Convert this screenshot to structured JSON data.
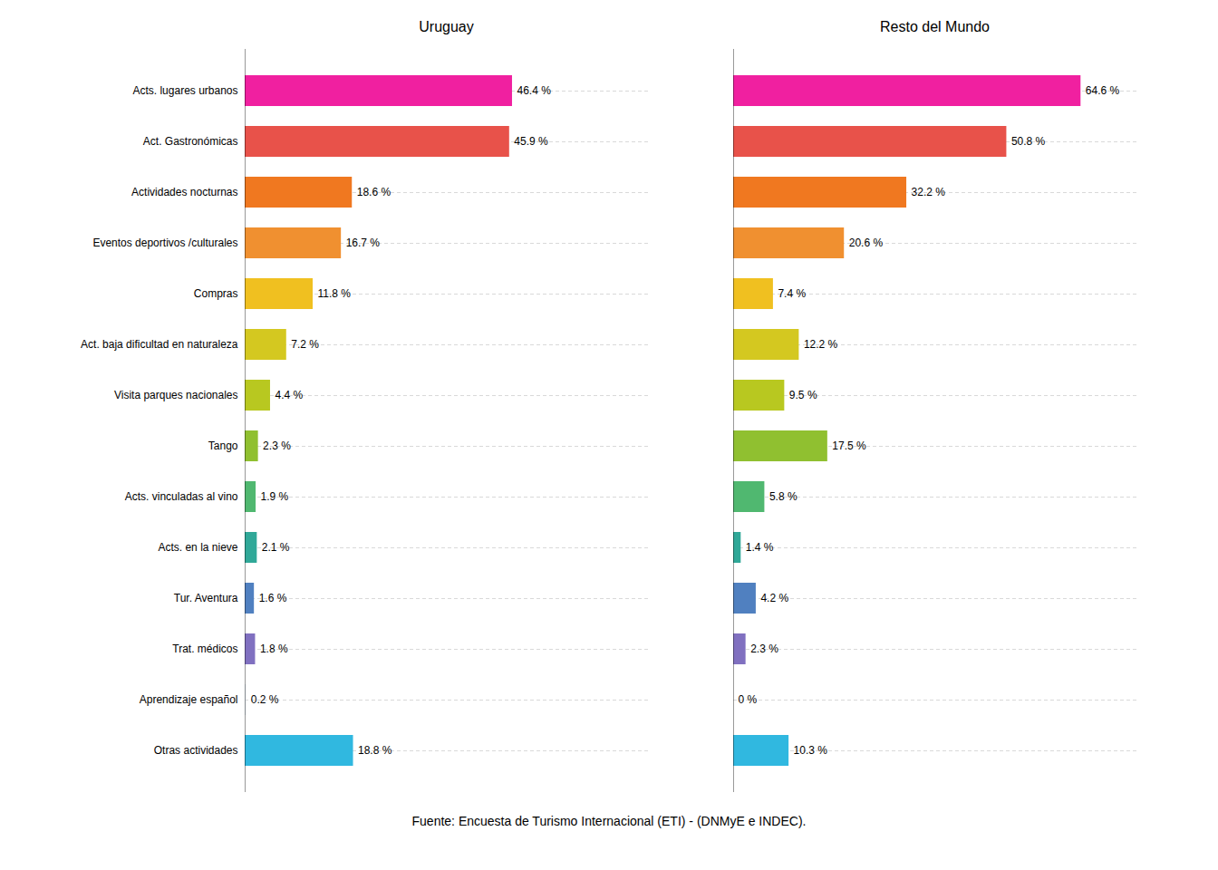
{
  "chart_data": [
    {
      "type": "bar",
      "orientation": "horizontal",
      "title": "Uruguay",
      "categories": [
        "Acts. lugares urbanos",
        "Act. Gastronómicas",
        "Actividades nocturnas",
        "Eventos deportivos /culturales",
        "Compras",
        "Act. baja dificultad en naturaleza",
        "Visita parques nacionales",
        "Tango",
        "Acts. vinculadas al vino",
        "Acts. en la nieve",
        "Tur. Aventura",
        "Trat. médicos",
        "Aprendizaje español",
        "Otras actividades"
      ],
      "values": [
        46.4,
        45.9,
        18.6,
        16.7,
        11.8,
        7.2,
        4.4,
        2.3,
        1.9,
        2.1,
        1.6,
        1.8,
        0.2,
        18.8
      ],
      "value_labels": [
        "46.4 %",
        "45.9 %",
        "18.6 %",
        "16.7 %",
        "11.8 %",
        "7.2 %",
        "4.4 %",
        "2.3 %",
        "1.9 %",
        "2.1 %",
        "1.6 %",
        "1.8 %",
        "0.2 %",
        "18.8 %"
      ],
      "colors": [
        "#F020A0",
        "#E8524A",
        "#F07820",
        "#F09030",
        "#F0C020",
        "#D4C820",
        "#B8C820",
        "#90C030",
        "#50B870",
        "#30A898",
        "#5080C0",
        "#8070C0",
        "#E0E8F0",
        "#30B8E0"
      ],
      "xlim": [
        0,
        70
      ],
      "data_labels": true,
      "tick_labels": "y",
      "grid": true
    },
    {
      "type": "bar",
      "orientation": "horizontal",
      "title": "Resto del Mundo",
      "categories": [
        "Acts. lugares urbanos",
        "Act. Gastronómicas",
        "Actividades nocturnas",
        "Eventos deportivos /culturales",
        "Compras",
        "Act. baja dificultad en naturaleza",
        "Visita parques nacionales",
        "Tango",
        "Acts. vinculadas al vino",
        "Acts. en la nieve",
        "Tur. Aventura",
        "Trat. médicos",
        "Aprendizaje español",
        "Otras actividades"
      ],
      "values": [
        64.6,
        50.8,
        32.2,
        20.6,
        7.4,
        12.2,
        9.5,
        17.5,
        5.8,
        1.4,
        4.2,
        2.3,
        0.0,
        10.3
      ],
      "value_labels": [
        "64.6 %",
        "50.8 %",
        "32.2 %",
        "20.6 %",
        "7.4 %",
        "12.2 %",
        "9.5 %",
        "17.5 %",
        "5.8 %",
        "1.4 %",
        "4.2 %",
        "2.3 %",
        "0 %",
        "10.3 %"
      ],
      "colors": [
        "#F020A0",
        "#E8524A",
        "#F07820",
        "#F09030",
        "#F0C020",
        "#D4C820",
        "#B8C820",
        "#90C030",
        "#50B870",
        "#30A898",
        "#5080C0",
        "#8070C0",
        "#E0E8F0",
        "#30B8E0"
      ],
      "xlim": [
        0,
        75
      ],
      "data_labels": true,
      "tick_labels": false,
      "grid": true,
      "caption": "Fuente: Encuesta de Turismo Internacional (ETI) - (DNMyE e INDEC)."
    }
  ]
}
